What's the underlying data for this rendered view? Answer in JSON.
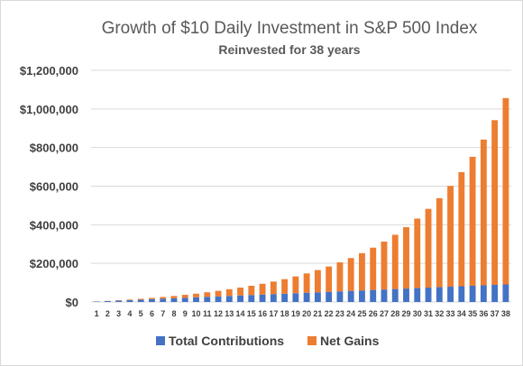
{
  "chart_data": {
    "type": "bar",
    "stacked": true,
    "title": "Growth of $10 Daily Investment in S&P 500 Index",
    "subtitle": "Reinvested for 38 years",
    "xlabel": "",
    "ylabel": "",
    "ylim": [
      0,
      1200000
    ],
    "yticks": [
      "$0",
      "$200,000",
      "$400,000",
      "$600,000",
      "$800,000",
      "$1,000,000",
      "$1,200,000"
    ],
    "grid": true,
    "legend_position": "bottom",
    "categories": [
      "1",
      "2",
      "3",
      "4",
      "5",
      "6",
      "7",
      "8",
      "9",
      "10",
      "11",
      "12",
      "13",
      "14",
      "15",
      "16",
      "17",
      "18",
      "19",
      "20",
      "21",
      "22",
      "23",
      "24",
      "25",
      "26",
      "27",
      "28",
      "29",
      "30",
      "31",
      "32",
      "33",
      "34",
      "35",
      "36",
      "37",
      "38"
    ],
    "series": [
      {
        "name": "Total Contributions",
        "color": "#4472c4",
        "values": [
          2400,
          4800,
          7200,
          9600,
          12000,
          14400,
          16800,
          19200,
          21600,
          24000,
          26400,
          28800,
          31200,
          33600,
          36000,
          38400,
          40800,
          43200,
          45600,
          48000,
          50400,
          52800,
          55200,
          57600,
          60000,
          62400,
          64800,
          67200,
          69600,
          72000,
          74400,
          76800,
          79200,
          81600,
          84000,
          86400,
          88800,
          91200
        ]
      },
      {
        "name": "Net Gains",
        "color": "#ed7d31",
        "values": [
          300,
          900,
          1800,
          3000,
          4500,
          6500,
          9000,
          12000,
          15500,
          19000,
          24000,
          29000,
          35000,
          41000,
          48000,
          56000,
          65000,
          75000,
          87000,
          100000,
          115000,
          131000,
          150000,
          170000,
          193000,
          219000,
          248000,
          281000,
          318000,
          360000,
          408000,
          461000,
          522000,
          591000,
          668000,
          755000,
          853000,
          965000
        ]
      }
    ]
  }
}
